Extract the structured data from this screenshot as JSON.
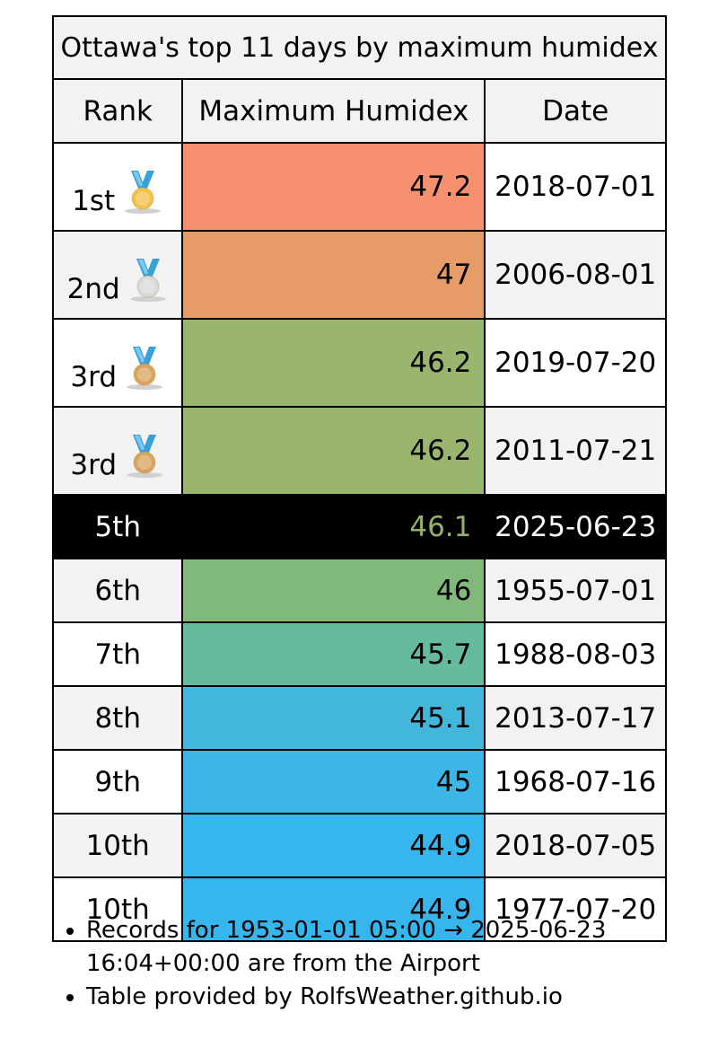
{
  "table": {
    "title": "Ottawa's top 11 days by maximum humidex",
    "headers": {
      "rank": "Rank",
      "value": "Maximum Humidex",
      "date": "Date"
    },
    "rows": [
      {
        "rank": "1st",
        "value": "47.2",
        "date": "2018-07-01",
        "medal": "gold",
        "color": "#f7906e"
      },
      {
        "rank": "2nd",
        "value": "47",
        "date": "2006-08-01",
        "medal": "silver",
        "color": "#e79b67"
      },
      {
        "rank": "3rd",
        "value": "46.2",
        "date": "2019-07-20",
        "medal": "bronze",
        "color": "#9ab56e"
      },
      {
        "rank": "3rd",
        "value": "46.2",
        "date": "2011-07-21",
        "medal": "bronze",
        "color": "#9ab56e"
      },
      {
        "rank": "5th",
        "value": "46.1",
        "date": "2025-06-23",
        "medal": "",
        "color": "#96b26a",
        "current": true
      },
      {
        "rank": "6th",
        "value": "46",
        "date": "1955-07-01",
        "medal": "",
        "color": "#81b97b"
      },
      {
        "rank": "7th",
        "value": "45.7",
        "date": "1988-08-03",
        "medal": "",
        "color": "#65bb9c"
      },
      {
        "rank": "8th",
        "value": "45.1",
        "date": "2013-07-17",
        "medal": "",
        "color": "#43b7d9"
      },
      {
        "rank": "9th",
        "value": "45",
        "date": "1968-07-16",
        "medal": "",
        "color": "#3bb6e6"
      },
      {
        "rank": "10th",
        "value": "44.9",
        "date": "2018-07-05",
        "medal": "",
        "color": "#36b6ec"
      },
      {
        "rank": "10th",
        "value": "44.9",
        "date": "1977-07-20",
        "medal": "",
        "color": "#36b6ec"
      }
    ]
  },
  "notes": [
    "Records for 1953-01-01 05:00 → 2025-06-23 16:04+00:00 are from the Airport",
    "Table provided by RolfsWeather.github.io"
  ],
  "medal_icons": {
    "gold": "gold-medal-icon",
    "silver": "silver-medal-icon",
    "bronze": "bronze-medal-icon"
  },
  "medal_colors": {
    "ribbon": "#3aa0d8",
    "gold": "#f2c14a",
    "silver": "#d9d9d9",
    "bronze": "#d9a35e"
  }
}
